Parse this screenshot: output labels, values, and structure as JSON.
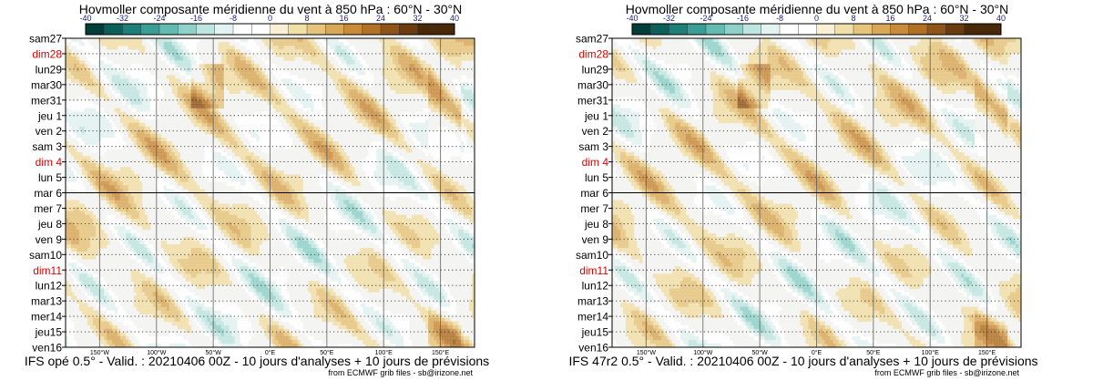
{
  "colors": {
    "title": "#1a1a80",
    "weekend": "#dd0000",
    "text": "#000000",
    "palette": [
      "#033e3b",
      "#0d5f59",
      "#1e7f78",
      "#3a9e95",
      "#62bab1",
      "#8fd0c8",
      "#bfe5e0",
      "#e2f3f1",
      "#ffffff",
      "#ffffff",
      "#faf0d6",
      "#f1dfa8",
      "#e6c47c",
      "#d8a859",
      "#c88a3b",
      "#b07026",
      "#8e5418",
      "#6b3c10",
      "#4a2909"
    ]
  },
  "icons": {
    "colorbar": "colorbar-scale"
  },
  "chart_data": [
    {
      "type": "heatmap",
      "title": "Hovmoller composante méridienne du vent à 850 hPa : 60°N - 30°N",
      "colorbar_ticks": [
        "-40",
        "-32",
        "-24",
        "-16",
        "-8",
        "0",
        "8",
        "16",
        "24",
        "32",
        "40"
      ],
      "colorbar_range": [
        -40,
        40
      ],
      "colorbar_step": 4,
      "y_labels": [
        "sam27",
        "dim28",
        "lun29",
        "mar30",
        "mer31",
        "jeu 1",
        "ven 2",
        "sam 3",
        "dim 4",
        "lun 5",
        "mar 6",
        "mer 7",
        "jeu 8",
        "ven 9",
        "sam10",
        "dim11",
        "lun12",
        "mar13",
        "mer14",
        "jeu15",
        "ven16"
      ],
      "weekend_labels": [
        "dim28",
        "dim 4",
        "dim11"
      ],
      "analysis_end_label": "mar 6",
      "x_labels": [
        "150°W",
        "100°W",
        "50°W",
        "0°E",
        "50°E",
        "100°E",
        "150°E"
      ],
      "x_values": [
        -150,
        -100,
        -50,
        0,
        50,
        100,
        150
      ],
      "x_range": [
        -180,
        180
      ],
      "footer": "IFS opé 0.5° - Valid. : 20210406 00Z - 10 jours d'analyses + 10 jours de prévisions",
      "credit": "from ECMWF grib files - sb@irizone.net"
    },
    {
      "type": "heatmap",
      "title": "Hovmoller composante méridienne du vent à 850 hPa : 60°N - 30°N",
      "colorbar_ticks": [
        "-40",
        "-32",
        "-24",
        "-16",
        "-8",
        "0",
        "8",
        "16",
        "24",
        "32",
        "40"
      ],
      "colorbar_range": [
        -40,
        40
      ],
      "colorbar_step": 4,
      "y_labels": [
        "sam27",
        "dim28",
        "lun29",
        "mar30",
        "mer31",
        "jeu 1",
        "ven 2",
        "sam 3",
        "dim 4",
        "lun 5",
        "mar 6",
        "mer 7",
        "jeu 8",
        "ven 9",
        "sam10",
        "dim11",
        "lun12",
        "mar13",
        "mer14",
        "jeu15",
        "ven16"
      ],
      "weekend_labels": [
        "dim28",
        "dim 4",
        "dim11"
      ],
      "analysis_end_label": "mar 6",
      "x_labels": [
        "150°W",
        "100°W",
        "50°W",
        "0°E",
        "50°E",
        "100°E",
        "150°E"
      ],
      "x_values": [
        -150,
        -100,
        -50,
        0,
        50,
        100,
        150
      ],
      "x_range": [
        -180,
        180
      ],
      "footer": "IFS 47r2 0.5° - Valid. : 20210406 00Z - 10 jours d'analyses + 10 jours de prévisions",
      "credit": "from ECMWF grib files - sb@irizone.net"
    }
  ]
}
